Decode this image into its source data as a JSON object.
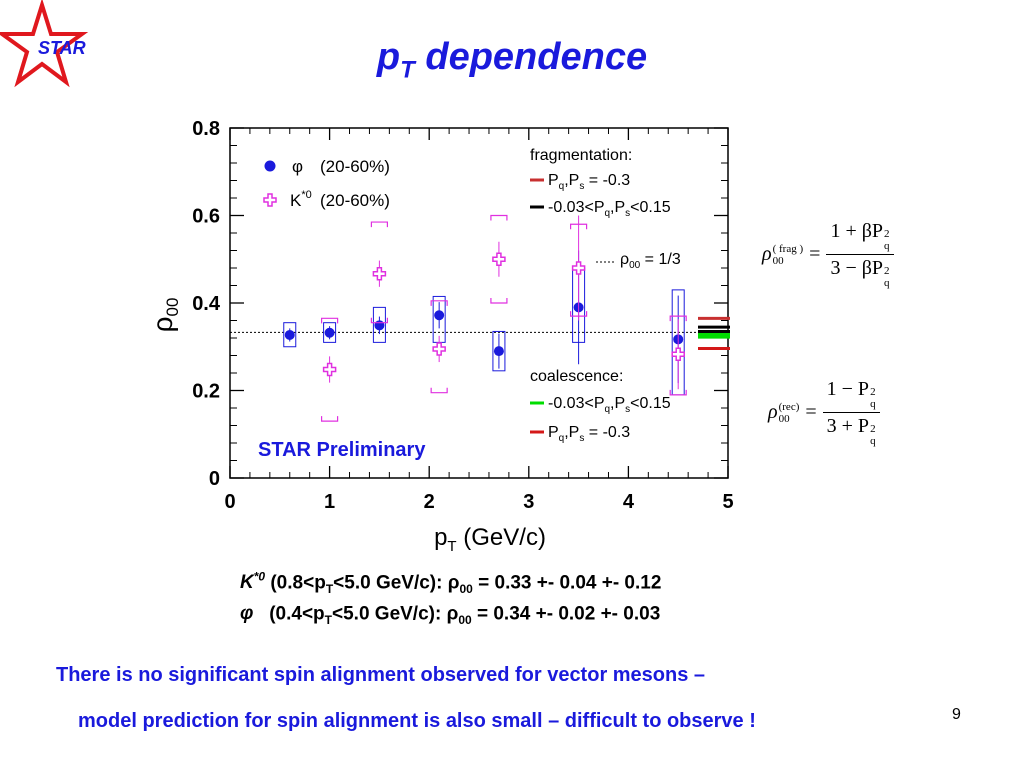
{
  "logo": {
    "text": "STAR",
    "star_color": "#e0181e",
    "text_color": "#1a1adc"
  },
  "title": {
    "main": "p",
    "sub": "T",
    "rest": " dependence"
  },
  "chart_data": {
    "type": "scatter",
    "xlabel_main": "p",
    "xlabel_sub": "T",
    "xlabel_rest": " (GeV/c)",
    "ylabel_main": "ρ",
    "ylabel_sub": "00",
    "xlim": [
      0,
      5
    ],
    "ylim": [
      0,
      0.8
    ],
    "xticks": [
      "0",
      "1",
      "2",
      "3",
      "4",
      "5"
    ],
    "yticks": [
      "0",
      "0.2",
      "0.4",
      "0.6",
      "0.8"
    ],
    "reference_line": {
      "y": 0.333,
      "style": "dotted"
    },
    "series": [
      {
        "name": "φ",
        "label": "(20-60%)",
        "color": "#1a1adc",
        "marker": "circle",
        "points": [
          {
            "x": 0.6,
            "y": 0.327,
            "stat": 0.015,
            "sys_lo": 0.3,
            "sys_hi": 0.355
          },
          {
            "x": 1.0,
            "y": 0.332,
            "stat": 0.015,
            "sys_lo": 0.31,
            "sys_hi": 0.355
          },
          {
            "x": 1.5,
            "y": 0.349,
            "stat": 0.02,
            "sys_lo": 0.31,
            "sys_hi": 0.39
          },
          {
            "x": 2.1,
            "y": 0.372,
            "stat": 0.03,
            "sys_lo": 0.31,
            "sys_hi": 0.415
          },
          {
            "x": 2.7,
            "y": 0.29,
            "stat": 0.04,
            "sys_lo": 0.245,
            "sys_hi": 0.335
          },
          {
            "x": 3.5,
            "y": 0.39,
            "stat": 0.13,
            "sys_lo": 0.31,
            "sys_hi": 0.48
          },
          {
            "x": 4.5,
            "y": 0.317,
            "stat": 0.1,
            "sys_lo": 0.19,
            "sys_hi": 0.43
          }
        ]
      },
      {
        "name": "K*0",
        "label": "(20-60%)",
        "color": "#e030e0",
        "marker": "open-cross",
        "points": [
          {
            "x": 1.0,
            "y": 0.248,
            "stat": 0.03,
            "sys_lo": 0.13,
            "sys_hi": 0.365
          },
          {
            "x": 1.5,
            "y": 0.467,
            "stat": 0.03,
            "sys_lo": 0.355,
            "sys_hi": 0.585
          },
          {
            "x": 2.1,
            "y": 0.295,
            "stat": 0.03,
            "sys_lo": 0.195,
            "sys_hi": 0.405
          },
          {
            "x": 2.7,
            "y": 0.5,
            "stat": 0.04,
            "sys_lo": 0.4,
            "sys_hi": 0.6
          },
          {
            "x": 3.5,
            "y": 0.48,
            "stat": 0.12,
            "sys_lo": 0.37,
            "sys_hi": 0.58
          },
          {
            "x": 4.5,
            "y": 0.283,
            "stat": 0.08,
            "sys_lo": 0.19,
            "sys_hi": 0.37
          }
        ]
      }
    ],
    "model_lines": [
      {
        "y": 0.365,
        "color": "#c83030",
        "group": "fragmentation"
      },
      {
        "y": 0.345,
        "color": "#000000",
        "group": "fragmentation"
      },
      {
        "y": 0.335,
        "color": "#000000",
        "group": "fragmentation"
      },
      {
        "y": 0.328,
        "color": "#00dd00",
        "group": "coalescence"
      },
      {
        "y": 0.322,
        "color": "#00dd00",
        "group": "coalescence"
      },
      {
        "y": 0.296,
        "color": "#d41818",
        "group": "coalescence"
      }
    ],
    "legend_fragmentation": {
      "title": "fragmentation:",
      "line1": "P",
      "line1_sub_q": "q",
      "line1_mid": ",P",
      "line1_sub_s": "s",
      "line1_rest": " = -0.3",
      "line2": "-0.03<P",
      "line2_sub_q": "q",
      "line2_mid": ",P",
      "line2_sub_s": "s",
      "line2_rest": "<0.15",
      "rho_label": "ρ",
      "rho_sub": "00",
      "rho_rest": " = 1/3"
    },
    "legend_coalescence": {
      "title": "coalescence:",
      "line1": "-0.03<P",
      "line1_sub_q": "q",
      "line1_mid": ",P",
      "line1_sub_s": "s",
      "line1_rest": "<0.15",
      "line2": "P",
      "line2_sub_q": "q",
      "line2_mid": ",P",
      "line2_sub_s": "s",
      "line2_rest": " = -0.3"
    },
    "legend_series": [
      {
        "symbol": "φ",
        "label": "(20-60%)"
      },
      {
        "symbol": "K",
        "symbol_sup": "*0",
        "label": "(20-60%)"
      }
    ],
    "preliminary": "STAR Preliminary"
  },
  "formulas": {
    "frag": {
      "sup": "( frag )",
      "sub": "00",
      "num": "1 + βP",
      "den": "3 − βP"
    },
    "rec": {
      "sup": "(rec)",
      "sub": "00",
      "num": "1 − P",
      "den": "3 + P"
    }
  },
  "results": [
    {
      "particle": "K",
      "particle_sup": "*0",
      "range_a": " (0.8<p",
      "range_b": "<5.0 GeV/c): ρ",
      "value": " = 0.33 +- 0.04 +- 0.12"
    },
    {
      "particle": "φ",
      "particle_sup": "",
      "range_a": "   (0.4<p",
      "range_b": "<5.0 GeV/c): ρ",
      "value": " = 0.34 +- 0.02 +- 0.03"
    }
  ],
  "conclusion": {
    "line1": "There is no significant spin alignment observed for vector mesons –",
    "line2": "model prediction for spin alignment is also small – difficult to observe !"
  },
  "page_number": "9"
}
